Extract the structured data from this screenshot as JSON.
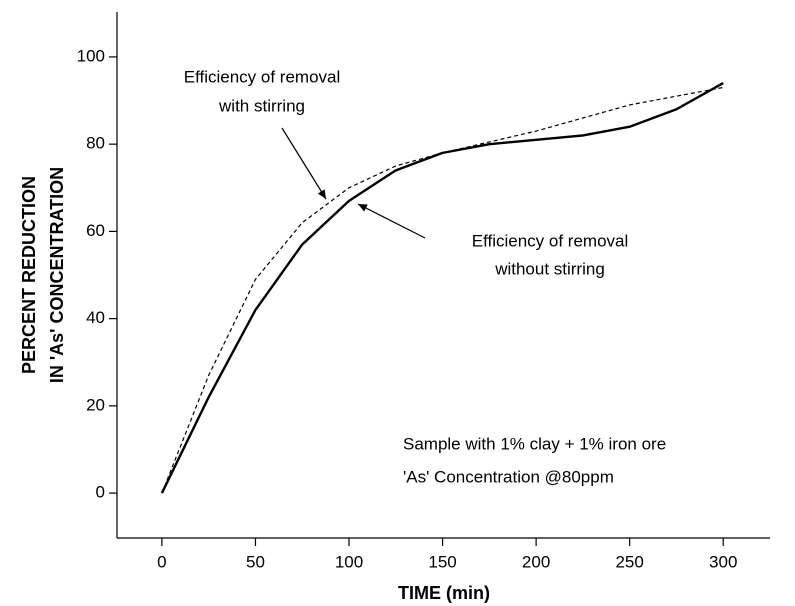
{
  "chart_data": {
    "type": "line",
    "x_label": "TIME (min)",
    "y_label": [
      "PERCENT REDUCTION",
      "IN 'As' CONCENTRATION"
    ],
    "x": [
      0,
      25,
      50,
      75,
      100,
      125,
      150,
      175,
      200,
      225,
      250,
      275,
      300
    ],
    "series": [
      {
        "color": "#000000",
        "style": "solid",
        "values": [
          0,
          22,
          42,
          57,
          67,
          74,
          78,
          80,
          81,
          82,
          84,
          88,
          94
        ]
      },
      {
        "color": "#000000",
        "style": "dashed",
        "values": [
          0,
          27,
          49,
          62,
          70,
          75,
          78,
          80.5,
          83,
          86,
          89,
          91,
          93
        ]
      }
    ],
    "xlim": [
      -24,
      325
    ],
    "ylim": [
      -10.3,
      110.3
    ],
    "xticks": [
      0,
      50,
      100,
      150,
      200,
      250,
      300
    ],
    "yticks": [
      0,
      20,
      40,
      60,
      80,
      100
    ],
    "annotations": {
      "with_stirring": [
        "Efficiency of removal",
        "with stirring"
      ],
      "without_stirring": [
        "Efficiency of removal",
        "without stirring"
      ],
      "sample": [
        "Sample with 1% clay + 1% iron ore",
        "'As' Concentration @80ppm"
      ]
    }
  }
}
